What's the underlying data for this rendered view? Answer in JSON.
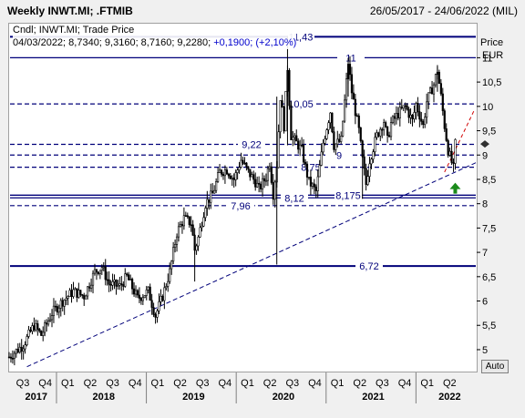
{
  "header": {
    "symbol": "Weekly INWT.MI; .FTMIB",
    "date_range": "26/05/2017 - 24/06/2022 (MIL)"
  },
  "info": {
    "line1": "Cndl; INWT.MI; Trade Price",
    "line2_prefix": "04/03/2022; 8,7340; 9,3160; 8,7160; 9,2280;",
    "line2_change": "+0,1900; (+2,10%)"
  },
  "auto_label": "Auto",
  "chart_data": {
    "type": "candlestick",
    "title": "Weekly INWT.MI; .FTMIB",
    "ylabel": "Price EUR",
    "ylabel_lines": [
      "Price",
      "EUR"
    ],
    "ylim": [
      4.55,
      11.7
    ],
    "y_ticks": [
      {
        "v": 5,
        "label": "5"
      },
      {
        "v": 5.5,
        "label": "5,5"
      },
      {
        "v": 6,
        "label": "6"
      },
      {
        "v": 6.5,
        "label": "6,5"
      },
      {
        "v": 7,
        "label": "7"
      },
      {
        "v": 7.5,
        "label": "7,5"
      },
      {
        "v": 8,
        "label": "8"
      },
      {
        "v": 8.5,
        "label": "8,5"
      },
      {
        "v": 9,
        "label": "9"
      },
      {
        "v": 9.5,
        "label": "9,5"
      },
      {
        "v": 10,
        "label": "10"
      },
      {
        "v": 10.5,
        "label": "10,5"
      },
      {
        "v": 11,
        "label": "11"
      }
    ],
    "quarter_labels": [
      "Q3",
      "Q4",
      "Q1",
      "Q2",
      "Q3",
      "Q4",
      "Q1",
      "Q2",
      "Q3",
      "Q4",
      "Q1",
      "Q2",
      "Q3",
      "Q4",
      "Q1",
      "Q2",
      "Q3",
      "Q4",
      "Q1",
      "Q2"
    ],
    "year_labels": [
      {
        "label": "2017",
        "q_index": 0.6
      },
      {
        "label": "2018",
        "q_index": 3.6
      },
      {
        "label": "2019",
        "q_index": 7.6
      },
      {
        "label": "2020",
        "q_index": 11.6
      },
      {
        "label": "2021",
        "q_index": 15.6
      },
      {
        "label": "2022",
        "q_index": 19.0
      }
    ],
    "horizontal_lines": [
      {
        "v": 11.43,
        "label": "11,43",
        "style": "solid-thick"
      },
      {
        "v": 11.0,
        "label": "11",
        "style": "solid"
      },
      {
        "v": 10.05,
        "label": "10,05",
        "style": "dashed"
      },
      {
        "v": 9.22,
        "label": "9,22",
        "style": "dashed"
      },
      {
        "v": 9.0,
        "label": "9",
        "style": "dashed"
      },
      {
        "v": 8.75,
        "label": "8,75",
        "style": "dashed"
      },
      {
        "v": 8.175,
        "label": "8,175",
        "style": "solid"
      },
      {
        "v": 8.12,
        "label": "8,12",
        "style": "solid"
      },
      {
        "v": 7.96,
        "label": "7,96",
        "style": "dashed"
      },
      {
        "v": 6.72,
        "label": "6,72",
        "style": "solid-thick"
      }
    ],
    "trendline": {
      "from": {
        "week": 10,
        "price": 4.65
      },
      "to": {
        "week": 262,
        "price": 8.85
      }
    },
    "projection": {
      "from": {
        "week": 244,
        "price": 8.65
      },
      "to": {
        "week": 261,
        "price": 9.95
      }
    },
    "current_price": 9.228,
    "close_path": [
      [
        0,
        4.85
      ],
      [
        8,
        5.1
      ],
      [
        14,
        5.5
      ],
      [
        18,
        5.3
      ],
      [
        24,
        5.75
      ],
      [
        30,
        6.0
      ],
      [
        36,
        6.2
      ],
      [
        42,
        6.1
      ],
      [
        48,
        6.6
      ],
      [
        52,
        6.7
      ],
      [
        56,
        6.35
      ],
      [
        62,
        6.3
      ],
      [
        66,
        6.5
      ],
      [
        72,
        6.05
      ],
      [
        78,
        6.2
      ],
      [
        82,
        5.7
      ],
      [
        86,
        6.1
      ],
      [
        90,
        6.6
      ],
      [
        94,
        7.4
      ],
      [
        98,
        7.7
      ],
      [
        102,
        7.6
      ],
      [
        104,
        7.05
      ],
      [
        106,
        7.3
      ],
      [
        110,
        8.0
      ],
      [
        114,
        8.2
      ],
      [
        118,
        8.65
      ],
      [
        122,
        8.7
      ],
      [
        126,
        8.5
      ],
      [
        130,
        8.9
      ],
      [
        134,
        8.65
      ],
      [
        138,
        8.45
      ],
      [
        140,
        8.3
      ],
      [
        144,
        8.55
      ],
      [
        146,
        8.85
      ],
      [
        148,
        8.2
      ],
      [
        150,
        8.8
      ],
      [
        152,
        10.2
      ],
      [
        154,
        9.6
      ],
      [
        156,
        10.8
      ],
      [
        158,
        9.4
      ],
      [
        160,
        9.3
      ],
      [
        164,
        9.1
      ],
      [
        166,
        8.75
      ],
      [
        168,
        8.45
      ],
      [
        172,
        8.25
      ],
      [
        176,
        9.25
      ],
      [
        180,
        9.9
      ],
      [
        182,
        9.2
      ],
      [
        186,
        9.3
      ],
      [
        190,
        10.9
      ],
      [
        192,
        10.3
      ],
      [
        194,
        9.9
      ],
      [
        196,
        9.5
      ],
      [
        198,
        8.9
      ],
      [
        200,
        8.4
      ],
      [
        202,
        8.9
      ],
      [
        206,
        9.4
      ],
      [
        210,
        9.7
      ],
      [
        212,
        9.3
      ],
      [
        214,
        9.65
      ],
      [
        218,
        9.85
      ],
      [
        222,
        10.0
      ],
      [
        226,
        9.7
      ],
      [
        228,
        10.05
      ],
      [
        232,
        9.6
      ],
      [
        234,
        10.1
      ],
      [
        238,
        10.45
      ],
      [
        240,
        10.75
      ],
      [
        242,
        10.2
      ],
      [
        244,
        9.6
      ],
      [
        246,
        9.1
      ],
      [
        248,
        8.85
      ],
      [
        249,
        8.72
      ],
      [
        250,
        9.228
      ]
    ],
    "total_weeks": 262,
    "up_marker": {
      "week": 251,
      "price": 8.3
    }
  }
}
